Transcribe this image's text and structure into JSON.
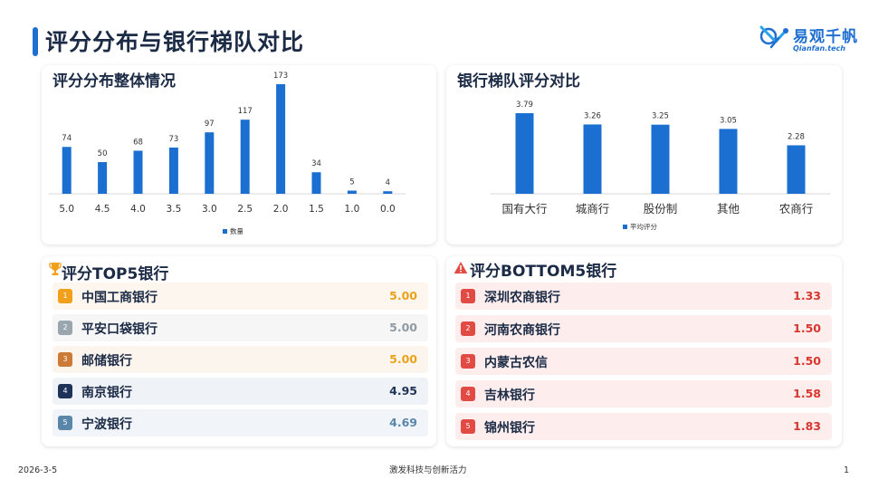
{
  "header": {
    "title": "评分分布与银行梯队对比",
    "logo_cn": "易观千帆",
    "logo_en": "Qianfan.tech"
  },
  "distribution": {
    "title": "评分分布整体情况",
    "chart_data": {
      "type": "bar",
      "categories": [
        "5.0",
        "4.5",
        "4.0",
        "3.5",
        "3.0",
        "2.5",
        "2.0",
        "1.5",
        "1.0",
        "0.0"
      ],
      "values": [
        74,
        50,
        68,
        73,
        97,
        117,
        173,
        34,
        5,
        4
      ],
      "series": [
        {
          "name": "数量",
          "values": [
            74,
            50,
            68,
            73,
            97,
            117,
            173,
            34,
            5,
            4
          ]
        }
      ],
      "ylim": [
        0,
        173
      ],
      "legend": "bottom",
      "grid": false,
      "color": "#1a6fd0"
    }
  },
  "tier": {
    "title": "银行梯队评分对比",
    "chart_data": {
      "type": "bar",
      "categories": [
        "国有大行",
        "城商行",
        "股份制",
        "其他",
        "农商行"
      ],
      "values": [
        3.79,
        3.26,
        3.25,
        3.05,
        2.28
      ],
      "series": [
        {
          "name": "平均评分",
          "values": [
            3.79,
            3.26,
            3.25,
            3.05,
            2.28
          ]
        }
      ],
      "ylim": [
        0,
        3.79
      ],
      "legend": "bottom",
      "grid": false,
      "color": "#1a6fd0"
    }
  },
  "top5": {
    "title": "评分TOP5银行",
    "icon": "trophy-icon",
    "items": [
      {
        "rank": "1",
        "name": "中国工商银行",
        "score": "5.00",
        "badge": "#f0a01a",
        "bg": "#fdf6ee",
        "color": "#e8a21c"
      },
      {
        "rank": "2",
        "name": "平安口袋银行",
        "score": "5.00",
        "badge": "#9aa6ad",
        "bg": "#f6f6f7",
        "color": "#8f9aa2"
      },
      {
        "rank": "3",
        "name": "邮储银行",
        "score": "5.00",
        "badge": "#cc7a36",
        "bg": "#fcf5ee",
        "color": "#e8a21c"
      },
      {
        "rank": "4",
        "name": "南京银行",
        "score": "4.95",
        "badge": "#1e3258",
        "bg": "#eff2f6",
        "color": "#1e3258"
      },
      {
        "rank": "5",
        "name": "宁波银行",
        "score": "4.69",
        "badge": "#5a86aa",
        "bg": "#f1f5f9",
        "color": "#5a86aa"
      }
    ]
  },
  "bottom5": {
    "title": "评分BOTTOM5银行",
    "icon": "warning-icon",
    "items": [
      {
        "rank": "1",
        "name": "深圳农商银行",
        "score": "1.33"
      },
      {
        "rank": "2",
        "name": "河南农商银行",
        "score": "1.50"
      },
      {
        "rank": "3",
        "name": "内蒙古农信",
        "score": "1.50"
      },
      {
        "rank": "4",
        "name": "吉林银行",
        "score": "1.58"
      },
      {
        "rank": "5",
        "name": "锦州银行",
        "score": "1.83"
      }
    ],
    "badge": "#e24b44",
    "bg": "#fdeeed",
    "color": "#d7362f"
  },
  "footer": {
    "date": "2026-3-5",
    "slogan": "激发科技与创新活力",
    "page": "1"
  }
}
